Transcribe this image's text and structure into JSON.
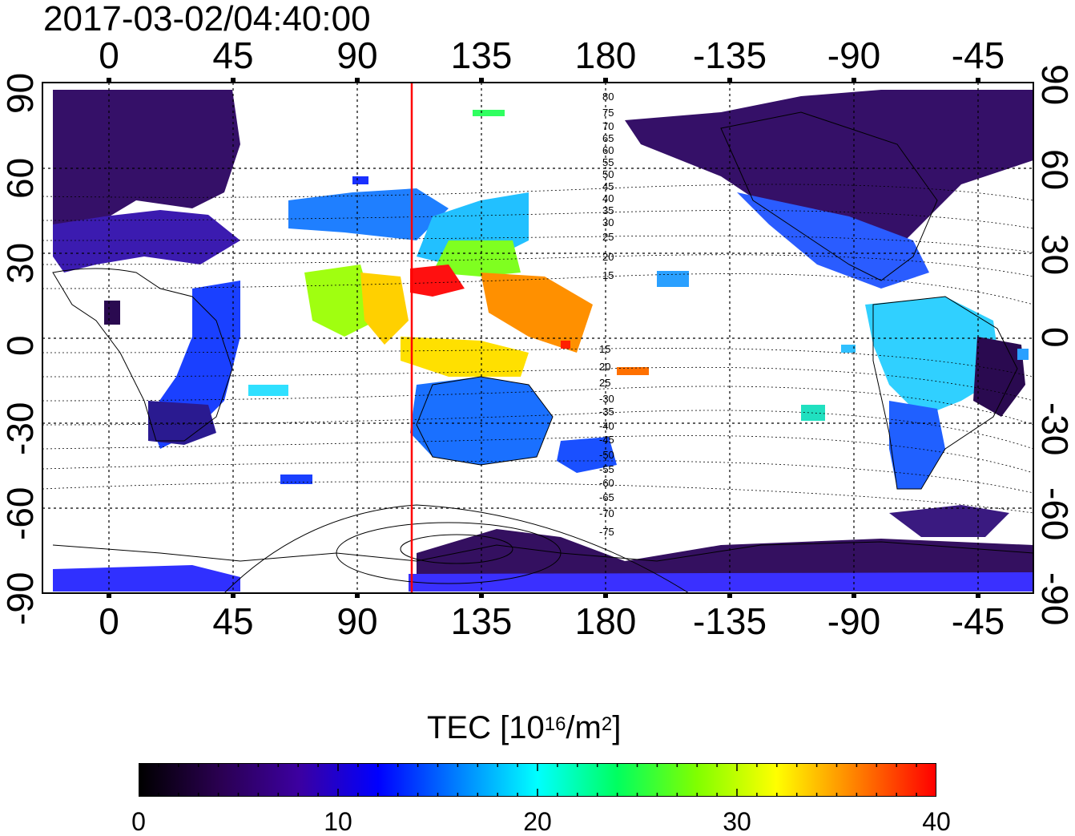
{
  "title": "2017-03-02/04:40:00",
  "map": {
    "projection": "equirectangular",
    "center_longitude": 135,
    "longitude_ticks": [
      "0",
      "45",
      "90",
      "135",
      "180",
      "-135",
      "-90",
      "-45"
    ],
    "latitude_ticks": [
      "90",
      "60",
      "30",
      "0",
      "-30",
      "-60",
      "-90"
    ],
    "grid": true,
    "terminator_line": {
      "longitude": 110,
      "color": "#ff0000"
    },
    "magnetic_latitude_labels_upper": [
      "80",
      "75",
      "70",
      "65",
      "60",
      "55",
      "50",
      "45",
      "40",
      "35",
      "30",
      "25",
      "20",
      "15"
    ],
    "magnetic_latitude_labels_lower": [
      "15",
      "20",
      "25",
      "-30",
      "-35",
      "-40",
      "-45",
      "-50",
      "-55",
      "-60",
      "-65",
      "-70",
      "-75"
    ]
  },
  "colorbar": {
    "title_prefix": "TEC  [10",
    "title_exponent": "16",
    "title_mid": "/m",
    "title_exponent2": "2",
    "title_suffix": "]",
    "min": 0,
    "max": 40,
    "tick_labels": [
      "0",
      "10",
      "20",
      "30",
      "40"
    ],
    "colors": [
      "#000000",
      "#2a0050",
      "#3c00a0",
      "#0000ff",
      "#0080ff",
      "#00ffff",
      "#00ff60",
      "#80ff00",
      "#ffff00",
      "#ff8000",
      "#ff0000"
    ]
  }
}
